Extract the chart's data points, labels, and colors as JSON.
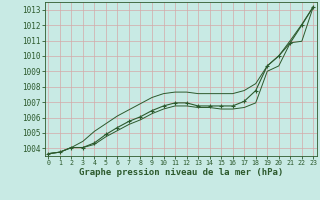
{
  "title": "Graphe pression niveau de la mer (hPa)",
  "bg_color": "#c8eae4",
  "grid_color": "#d4a8a8",
  "line_color": "#2d5a2d",
  "ylim": [
    1003.5,
    1013.5
  ],
  "xlim": [
    -0.3,
    23.3
  ],
  "yticks": [
    1004,
    1005,
    1006,
    1007,
    1008,
    1009,
    1010,
    1011,
    1012,
    1013
  ],
  "xticks": [
    0,
    1,
    2,
    3,
    4,
    5,
    6,
    7,
    8,
    9,
    10,
    11,
    12,
    13,
    14,
    15,
    16,
    17,
    18,
    19,
    20,
    21,
    22,
    23
  ],
  "x": [
    0,
    1,
    2,
    3,
    4,
    5,
    6,
    7,
    8,
    9,
    10,
    11,
    12,
    13,
    14,
    15,
    16,
    17,
    18,
    19,
    20,
    21,
    22,
    23
  ],
  "line_marked": [
    1003.65,
    1003.75,
    1004.05,
    1004.05,
    1004.35,
    1004.9,
    1005.35,
    1005.75,
    1006.05,
    1006.45,
    1006.75,
    1006.95,
    1006.95,
    1006.75,
    1006.75,
    1006.75,
    1006.75,
    1007.05,
    1007.75,
    1009.35,
    1010.0,
    1010.85,
    1012.0,
    1013.2
  ],
  "line_upper": [
    1003.65,
    1003.75,
    1004.05,
    1004.45,
    1005.1,
    1005.6,
    1006.1,
    1006.5,
    1006.9,
    1007.3,
    1007.55,
    1007.65,
    1007.65,
    1007.55,
    1007.55,
    1007.55,
    1007.55,
    1007.75,
    1008.2,
    1009.35,
    1010.0,
    1011.0,
    1012.05,
    1013.2
  ],
  "line_lower": [
    1003.65,
    1003.75,
    1004.05,
    1004.05,
    1004.25,
    1004.75,
    1005.15,
    1005.55,
    1005.85,
    1006.25,
    1006.55,
    1006.75,
    1006.75,
    1006.65,
    1006.65,
    1006.55,
    1006.55,
    1006.65,
    1006.95,
    1009.0,
    1009.35,
    1010.85,
    1010.95,
    1013.2
  ]
}
